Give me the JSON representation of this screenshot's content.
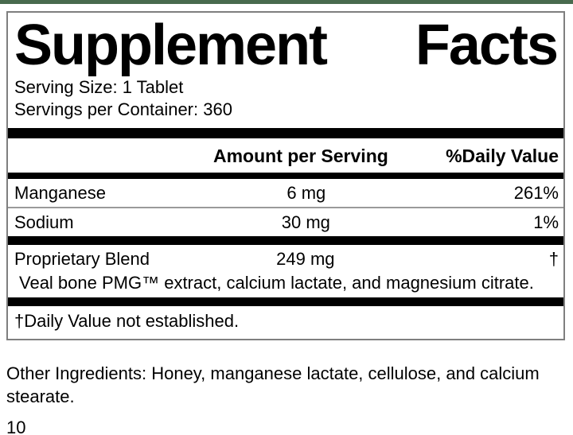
{
  "accent_color": "#486a4e",
  "panel": {
    "title_words": {
      "first": "Supplement",
      "second": "Facts"
    },
    "serving_size": "Serving Size: 1 Tablet",
    "servings_per_container": "Servings per Container: 360",
    "columns": {
      "amount_header": "Amount per Serving",
      "daily_value_header": "%Daily Value"
    },
    "rows": [
      {
        "name": "Manganese",
        "amount": "6 mg",
        "dv": "261%"
      },
      {
        "name": "Sodium",
        "amount": "30 mg",
        "dv": "1%"
      },
      {
        "name": "Proprietary Blend",
        "amount": "249 mg",
        "dv": "†"
      }
    ],
    "blend_description": "Veal bone PMG™ extract, calcium lactate, and magnesium citrate.",
    "footnote": "†Daily Value not established."
  },
  "other_ingredients": "Other Ingredients: Honey, manganese lactate, cellulose, and calcium stearate.",
  "page_number": "10"
}
